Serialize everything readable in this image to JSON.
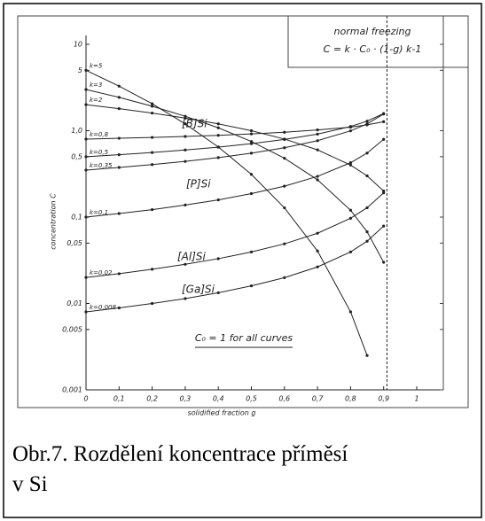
{
  "chart_data": {
    "type": "line",
    "log_y": true,
    "legend_title": "normal freezing",
    "formula": "C = k · C₀ · (1-g) k-1",
    "note": "C₀ = 1 for all curves",
    "xlabel": "solidified fraction g",
    "ylabel": "concentration C",
    "annotations": [
      "[B]Si",
      "[P]Si",
      "[Al]Si",
      "[Ga]Si"
    ],
    "caption": "Obr.7. Rozdělení koncentrace příměsí v Si",
    "x": [
      0,
      0.1,
      0.2,
      0.3,
      0.4,
      0.5,
      0.6,
      0.7,
      0.8,
      0.85,
      0.9
    ],
    "series": [
      {
        "name": "k=5",
        "color": "#222",
        "values": [
          5,
          3.28,
          2.05,
          1.2,
          0.648,
          0.3125,
          0.128,
          0.0405,
          0.008,
          0.0025,
          null
        ]
      },
      {
        "name": "k=3",
        "color": "#222",
        "values": [
          3,
          2.43,
          1.92,
          1.47,
          1.08,
          0.75,
          0.48,
          0.27,
          0.12,
          0.0675,
          0.03
        ]
      },
      {
        "name": "k=2",
        "color": "#222",
        "values": [
          2,
          1.8,
          1.6,
          1.4,
          1.2,
          1.0,
          0.8,
          0.6,
          0.4,
          0.3,
          0.2
        ]
      },
      {
        "name": "k=0,8",
        "color": "#222",
        "values": [
          0.8,
          0.817,
          0.836,
          0.858,
          0.884,
          0.919,
          0.96,
          1.02,
          1.1,
          1.17,
          1.27
        ]
      },
      {
        "name": "k=0,5",
        "color": "#222",
        "values": [
          0.5,
          0.527,
          0.559,
          0.598,
          0.645,
          0.707,
          0.791,
          0.913,
          1.118,
          1.29,
          1.58
        ]
      },
      {
        "name": "k=0,35",
        "color": "#222",
        "values": [
          0.35,
          0.375,
          0.405,
          0.441,
          0.488,
          0.549,
          0.635,
          0.766,
          0.996,
          1.2,
          1.56
        ]
      },
      {
        "name": "k=0,1",
        "color": "#222",
        "values": [
          0.1,
          0.11,
          0.122,
          0.138,
          0.158,
          0.187,
          0.228,
          0.296,
          0.426,
          0.551,
          0.794
        ]
      },
      {
        "name": "k=0,02",
        "color": "#222",
        "values": [
          0.02,
          0.0221,
          0.0249,
          0.0284,
          0.033,
          0.0395,
          0.049,
          0.065,
          0.0969,
          0.1283,
          0.191
        ]
      },
      {
        "name": "k=0,008",
        "color": "#222",
        "values": [
          0.008,
          0.00889,
          0.01,
          0.0114,
          0.0133,
          0.016,
          0.0199,
          0.0265,
          0.0395,
          0.0526,
          0.0787
        ]
      }
    ],
    "xlim": [
      0,
      1
    ],
    "xticks": [
      0,
      {
        "value": 0.1,
        "label": "0,1"
      },
      {
        "value": 0.2,
        "label": "0,2"
      },
      {
        "value": 0.3,
        "label": "0,3"
      },
      {
        "value": 0.4,
        "label": "0,4"
      },
      {
        "value": 0.5,
        "label": "0,5"
      },
      {
        "value": 0.6,
        "label": "0,6"
      },
      {
        "value": 0.7,
        "label": "0,7"
      },
      {
        "value": 0.8,
        "label": "0,8"
      },
      {
        "value": 0.9,
        "label": "0,9"
      },
      1
    ],
    "ylim": [
      0.001,
      10
    ],
    "yticks": [
      10,
      5,
      {
        "value": 1,
        "label": "1,0"
      },
      {
        "value": 0.5,
        "label": "0,5"
      },
      {
        "value": 0.1,
        "label": "0,1"
      },
      {
        "value": 0.05,
        "label": "0,05"
      },
      {
        "value": 0.01,
        "label": "0,01"
      },
      {
        "value": 0.005,
        "label": "0,005"
      },
      {
        "value": 0.001,
        "label": "0,001"
      }
    ],
    "vline": 0.91
  }
}
